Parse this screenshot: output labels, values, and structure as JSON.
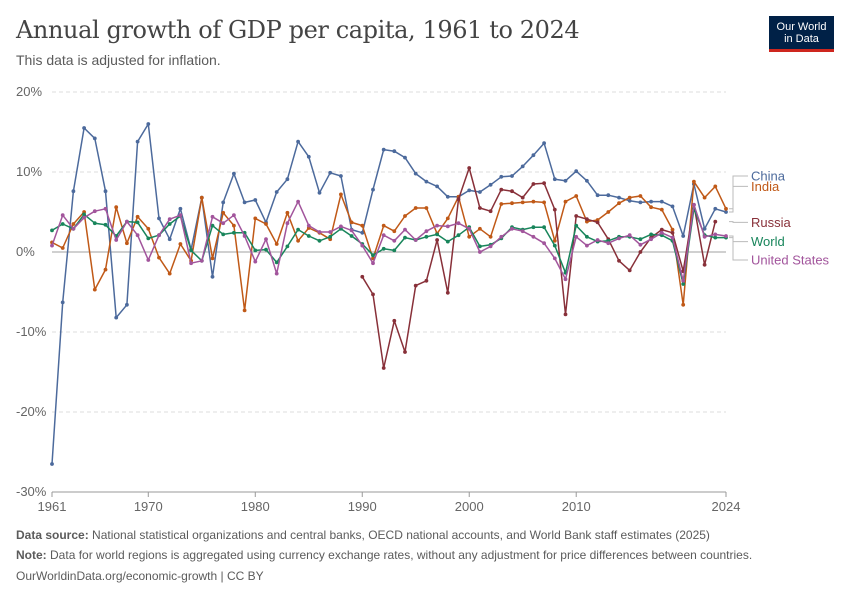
{
  "header": {
    "title": "Annual growth of GDP per capita, 1961 to 2024",
    "subtitle": "This data is adjusted for inflation.",
    "logo_line1": "Our World",
    "logo_line2": "in Data"
  },
  "footer": {
    "source_label": "Data source:",
    "source_text": "National statistical organizations and central banks, OECD national accounts, and World Bank staff estimates (2025)",
    "note_label": "Note:",
    "note_text": "Data for world regions is aggregated using currency exchange rates, without any adjustment for price differences between countries.",
    "credit": "OurWorldinData.org/economic-growth | CC BY"
  },
  "chart_data": {
    "type": "line",
    "title": "Annual growth of GDP per capita, 1961 to 2024",
    "subtitle": "This data is adjusted for inflation.",
    "y_unit": "%",
    "xlim": [
      1961,
      2024
    ],
    "ylim": [
      -30,
      20
    ],
    "y_ticks": [
      {
        "value": 20,
        "label": "20%"
      },
      {
        "value": 10,
        "label": "10%"
      },
      {
        "value": 0,
        "label": "0%"
      },
      {
        "value": -10,
        "label": "-10%"
      },
      {
        "value": -20,
        "label": "-20%"
      },
      {
        "value": -30,
        "label": "-30%"
      }
    ],
    "x_ticks": [
      {
        "value": 1961,
        "label": "1961"
      },
      {
        "value": 1970,
        "label": "1970"
      },
      {
        "value": 1980,
        "label": "1980"
      },
      {
        "value": 1990,
        "label": "1990"
      },
      {
        "value": 2000,
        "label": "2000"
      },
      {
        "value": 2010,
        "label": "2010"
      },
      {
        "value": 2024,
        "label": "2024"
      }
    ],
    "grid": "horizontal dashed",
    "legend_position": "right, labels at line ends",
    "series": [
      {
        "name": "China",
        "color": "#4c6a9c",
        "label_y": 9.5,
        "start_year": 1961,
        "values": [
          -26.5,
          -6.3,
          7.6,
          15.5,
          14.2,
          7.6,
          -8.2,
          -6.6,
          13.8,
          16.0,
          4.2,
          1.6,
          5.4,
          0.3,
          6.8,
          -3.1,
          6.2,
          9.8,
          6.2,
          6.5,
          3.7,
          7.5,
          9.1,
          13.8,
          11.9,
          7.4,
          9.9,
          9.5,
          2.8,
          2.4,
          7.8,
          12.8,
          12.6,
          11.8,
          9.8,
          8.8,
          8.2,
          6.9,
          6.9,
          7.7,
          7.5,
          8.4,
          9.4,
          9.5,
          10.7,
          12.1,
          13.6,
          9.1,
          8.9,
          10.1,
          8.9,
          7.1,
          7.1,
          6.8,
          6.4,
          6.2,
          6.3,
          6.3,
          5.7,
          2.0,
          8.5,
          2.9,
          5.4,
          5.0
        ]
      },
      {
        "name": "India",
        "color": "#c05917",
        "label_y": 8.2,
        "start_year": 1961,
        "values": [
          1.2,
          0.5,
          3.5,
          5.0,
          -4.7,
          -2.2,
          5.6,
          1.1,
          4.4,
          2.9,
          -0.7,
          -2.7,
          1.0,
          -1.1,
          6.8,
          -0.8,
          4.9,
          3.3,
          -7.3,
          4.2,
          3.5,
          1.0,
          4.9,
          1.4,
          3.0,
          2.4,
          1.6,
          7.2,
          3.7,
          3.3,
          -0.8,
          3.3,
          2.6,
          4.5,
          5.5,
          5.5,
          2.3,
          4.2,
          6.9,
          1.9,
          2.9,
          1.9,
          6.0,
          6.1,
          6.2,
          6.3,
          6.2,
          1.4,
          6.3,
          7.0,
          3.8,
          4.0,
          5.0,
          6.1,
          6.8,
          7.0,
          5.6,
          5.3,
          2.8,
          -6.6,
          8.8,
          6.8,
          8.2,
          5.4
        ]
      },
      {
        "name": "Russia",
        "color": "#883039",
        "label_y": 3.7,
        "start_year": 1990,
        "values": [
          -3.1,
          -5.3,
          -14.5,
          -8.6,
          -12.5,
          -4.2,
          -3.6,
          1.5,
          -5.1,
          6.6,
          10.5,
          5.5,
          5.1,
          7.8,
          7.6,
          6.8,
          8.5,
          8.6,
          5.3,
          -7.8,
          4.5,
          4.1,
          3.7,
          1.6,
          -1.1,
          -2.3,
          0.0,
          1.8,
          2.8,
          2.4,
          -2.4,
          5.9,
          -1.6,
          3.8
        ]
      },
      {
        "name": "World",
        "color": "#18855b",
        "label_y": 1.3,
        "start_year": 1961,
        "values": [
          2.7,
          3.5,
          2.9,
          4.7,
          3.6,
          3.4,
          2.0,
          3.8,
          3.7,
          1.7,
          2.1,
          3.5,
          4.5,
          0.2,
          -1.1,
          3.3,
          2.2,
          2.4,
          2.4,
          0.2,
          0.3,
          -1.3,
          0.7,
          2.8,
          2.0,
          1.4,
          1.9,
          2.9,
          2.0,
          1.0,
          -0.4,
          0.4,
          0.2,
          1.8,
          1.5,
          1.9,
          2.2,
          1.3,
          2.1,
          3.1,
          0.7,
          0.9,
          1.7,
          3.1,
          2.8,
          3.1,
          3.1,
          0.8,
          -2.6,
          3.3,
          1.9,
          1.3,
          1.4,
          1.9,
          1.9,
          1.6,
          2.2,
          2.1,
          1.4,
          -4.0,
          5.4,
          2.1,
          1.8,
          1.8
        ]
      },
      {
        "name": "United States",
        "color": "#a2559c",
        "label_y": -1.0,
        "start_year": 1961,
        "values": [
          0.8,
          4.6,
          2.9,
          4.3,
          5.1,
          5.4,
          1.5,
          3.8,
          2.1,
          -1.0,
          2.1,
          4.1,
          4.6,
          -1.4,
          -1.1,
          4.4,
          3.6,
          4.6,
          2.0,
          -1.2,
          1.6,
          -2.7,
          3.6,
          6.3,
          3.3,
          2.5,
          2.5,
          3.2,
          2.7,
          0.8,
          -1.4,
          2.1,
          1.4,
          2.8,
          1.5,
          2.6,
          3.3,
          3.2,
          3.6,
          2.9,
          0.0,
          0.7,
          1.9,
          2.9,
          2.6,
          1.9,
          1.1,
          -0.8,
          -3.4,
          1.9,
          0.8,
          1.5,
          1.1,
          1.7,
          2.1,
          0.9,
          1.6,
          2.4,
          1.8,
          -3.6,
          5.9,
          1.9,
          2.2,
          2.0
        ]
      }
    ]
  }
}
